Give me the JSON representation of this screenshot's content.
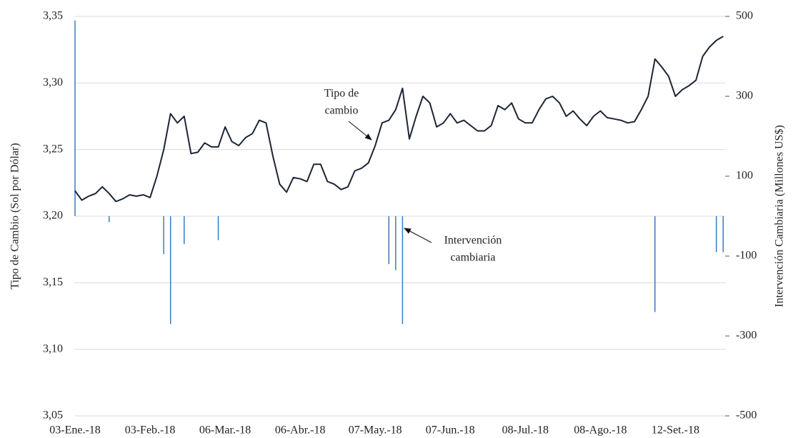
{
  "chart_data": {
    "type": "line-bar",
    "y_label": "Tipo de Cambio (Sol por Dólar)",
    "y2_label": "Intervención Cambiaria (Millones US$)",
    "categories": [
      "03-Ene.-18",
      null,
      null,
      null,
      null,
      null,
      null,
      null,
      null,
      null,
      null,
      "03-Feb.-18",
      null,
      null,
      null,
      null,
      null,
      null,
      null,
      null,
      null,
      null,
      "06-Mar.-18",
      null,
      null,
      null,
      null,
      null,
      null,
      null,
      null,
      null,
      null,
      "06-Abr.-18",
      null,
      null,
      null,
      null,
      null,
      null,
      null,
      null,
      null,
      null,
      "07-May.-18",
      null,
      null,
      null,
      null,
      null,
      null,
      null,
      null,
      null,
      null,
      "07-Jun.-18",
      null,
      null,
      null,
      null,
      null,
      null,
      null,
      null,
      null,
      null,
      "08-Jul.-18",
      null,
      null,
      null,
      null,
      null,
      null,
      null,
      null,
      null,
      null,
      "08-Ago.-18",
      null,
      null,
      null,
      null,
      null,
      null,
      null,
      null,
      null,
      null,
      "12-Set.-18",
      null,
      null,
      null,
      null,
      null,
      null,
      null
    ],
    "series": [
      {
        "name": "Tipo de cambio",
        "type": "line",
        "color": "#1c2536",
        "values": [
          3.219,
          3.212,
          3.215,
          3.217,
          3.222,
          3.217,
          3.211,
          3.213,
          3.216,
          3.215,
          3.216,
          3.214,
          3.23,
          3.25,
          3.277,
          3.27,
          3.275,
          3.247,
          3.248,
          3.255,
          3.252,
          3.252,
          3.267,
          3.256,
          3.253,
          3.259,
          3.262,
          3.272,
          3.27,
          3.245,
          3.224,
          3.218,
          3.229,
          3.228,
          3.226,
          3.239,
          3.239,
          3.226,
          3.224,
          3.22,
          3.222,
          3.234,
          3.236,
          3.24,
          3.253,
          3.27,
          3.272,
          3.28,
          3.296,
          3.258,
          3.275,
          3.29,
          3.285,
          3.267,
          3.27,
          3.277,
          3.27,
          3.272,
          3.268,
          3.264,
          3.264,
          3.268,
          3.283,
          3.28,
          3.285,
          3.273,
          3.27,
          3.27,
          3.28,
          3.288,
          3.29,
          3.285,
          3.275,
          3.279,
          3.273,
          3.268,
          3.275,
          3.279,
          3.274,
          3.273,
          3.272,
          3.27,
          3.271,
          3.28,
          3.29,
          3.318,
          3.312,
          3.305,
          3.29,
          3.295,
          3.298,
          3.302,
          3.32,
          3.327,
          3.332,
          3.335
        ]
      },
      {
        "name": "Intervención cambiaria",
        "type": "bar",
        "axis": "y2",
        "color": "#3a7bbf",
        "values": [
          490,
          null,
          null,
          null,
          null,
          -15,
          null,
          null,
          null,
          null,
          null,
          null,
          null,
          -95,
          -270,
          null,
          -70,
          null,
          null,
          null,
          null,
          -60,
          null,
          null,
          null,
          null,
          null,
          null,
          null,
          null,
          null,
          null,
          null,
          null,
          null,
          null,
          null,
          null,
          null,
          null,
          null,
          null,
          null,
          null,
          null,
          null,
          -120,
          -135,
          -270,
          null,
          null,
          null,
          null,
          null,
          null,
          null,
          null,
          null,
          null,
          null,
          null,
          null,
          null,
          null,
          null,
          null,
          null,
          null,
          null,
          null,
          null,
          null,
          null,
          null,
          null,
          null,
          null,
          null,
          null,
          null,
          null,
          null,
          null,
          null,
          null,
          -240,
          null,
          null,
          null,
          null,
          null,
          null,
          null,
          null,
          -90,
          -90
        ]
      }
    ],
    "annotations": [
      {
        "lines": [
          "Tipo de",
          "cambio"
        ]
      },
      {
        "lines": [
          "Intervención",
          "cambiaria"
        ]
      }
    ],
    "ylim": [
      3.05,
      3.35
    ],
    "yticks": [
      {
        "value": 3.05,
        "label": "3,05"
      },
      {
        "value": 3.1,
        "label": "3,10"
      },
      {
        "value": 3.15,
        "label": "3,15"
      },
      {
        "value": 3.2,
        "label": "3,20"
      },
      {
        "value": 3.25,
        "label": "3,25"
      },
      {
        "value": 3.3,
        "label": "3,30"
      },
      {
        "value": 3.35,
        "label": "3,35"
      }
    ],
    "y2lim": [
      -500,
      500
    ],
    "y2ticks": [
      -500,
      -300,
      -100,
      100,
      300,
      500
    ],
    "grid": true
  }
}
